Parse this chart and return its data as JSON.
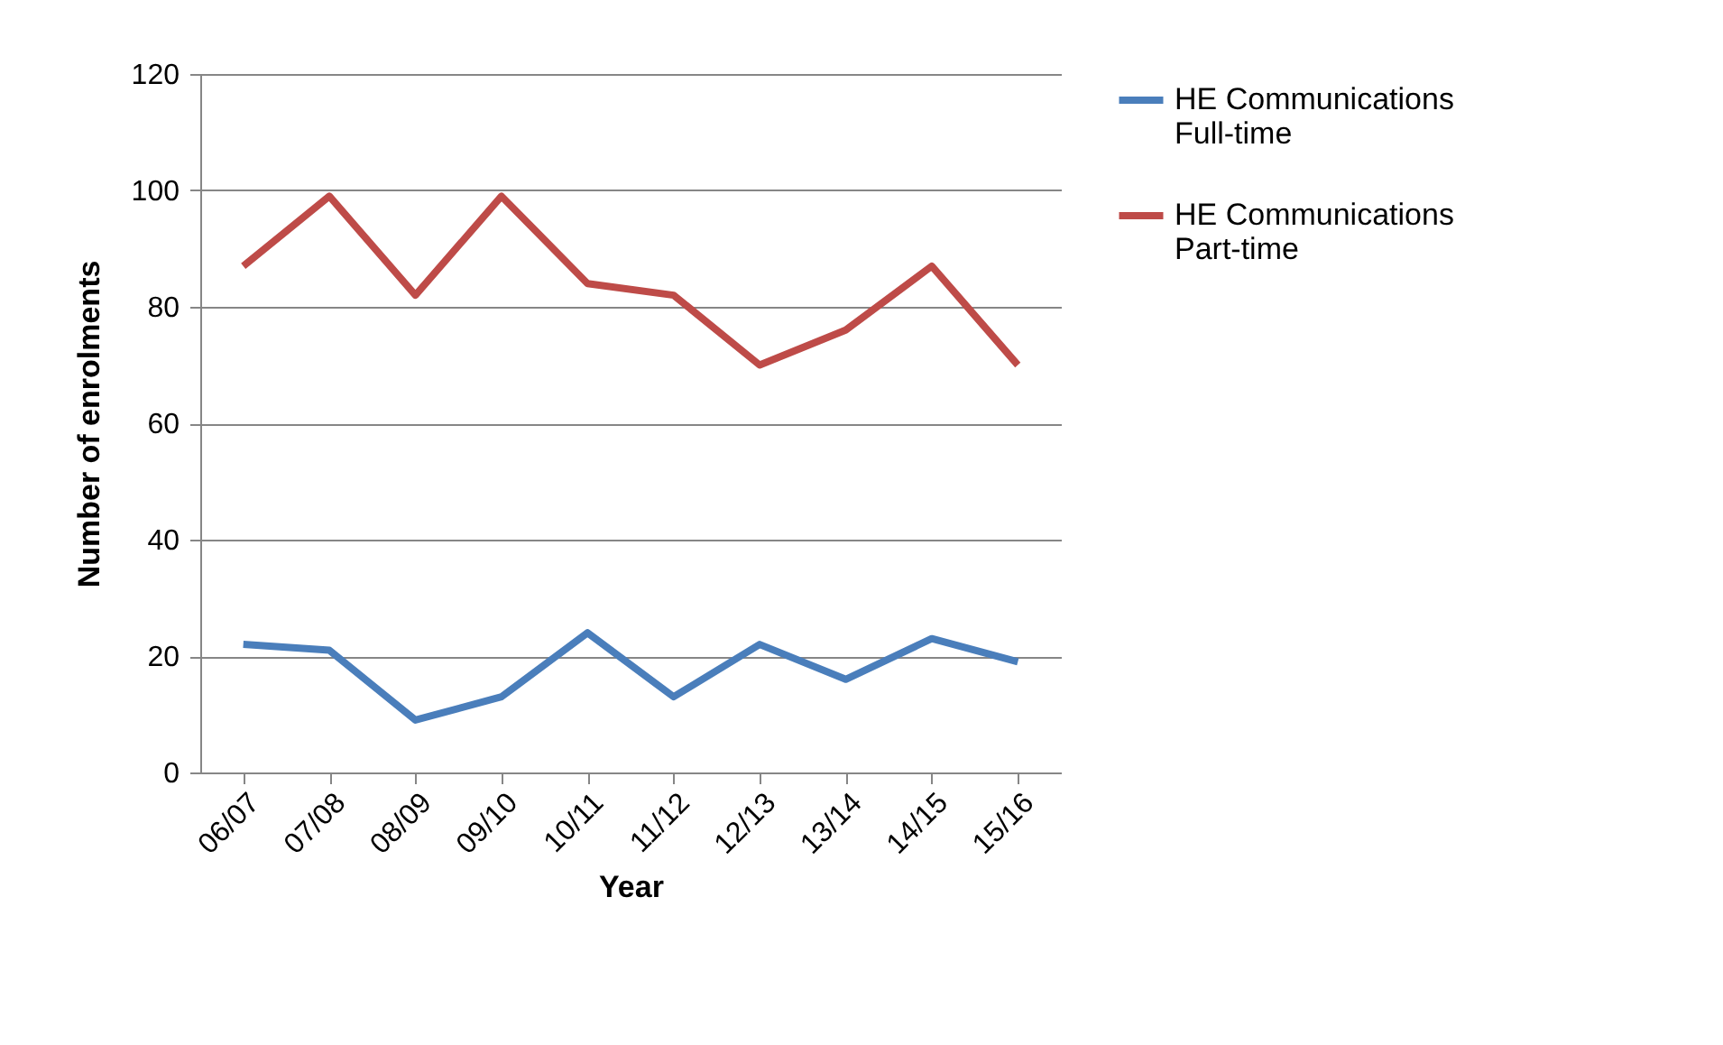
{
  "chart_data": {
    "type": "line",
    "xlabel": "Year",
    "ylabel": "Number of enrolments",
    "categories": [
      "06/07",
      "07/08",
      "08/09",
      "09/10",
      "10/11",
      "11/12",
      "12/13",
      "13/14",
      "14/15",
      "15/16"
    ],
    "series": [
      {
        "name": "HE Communications Full-time",
        "color": "#4a7ebb",
        "values": [
          22,
          21,
          9,
          13,
          24,
          13,
          22,
          16,
          23,
          19
        ]
      },
      {
        "name": "HE Communications Part-time",
        "color": "#be4b48",
        "values": [
          87,
          99,
          82,
          99,
          84,
          82,
          70,
          76,
          87,
          70
        ]
      }
    ],
    "ylim": [
      0,
      120
    ],
    "yticks": [
      0,
      20,
      40,
      60,
      80,
      100,
      120
    ],
    "grid": "y",
    "legend": "right",
    "marker": "none",
    "line_style": "solid"
  }
}
